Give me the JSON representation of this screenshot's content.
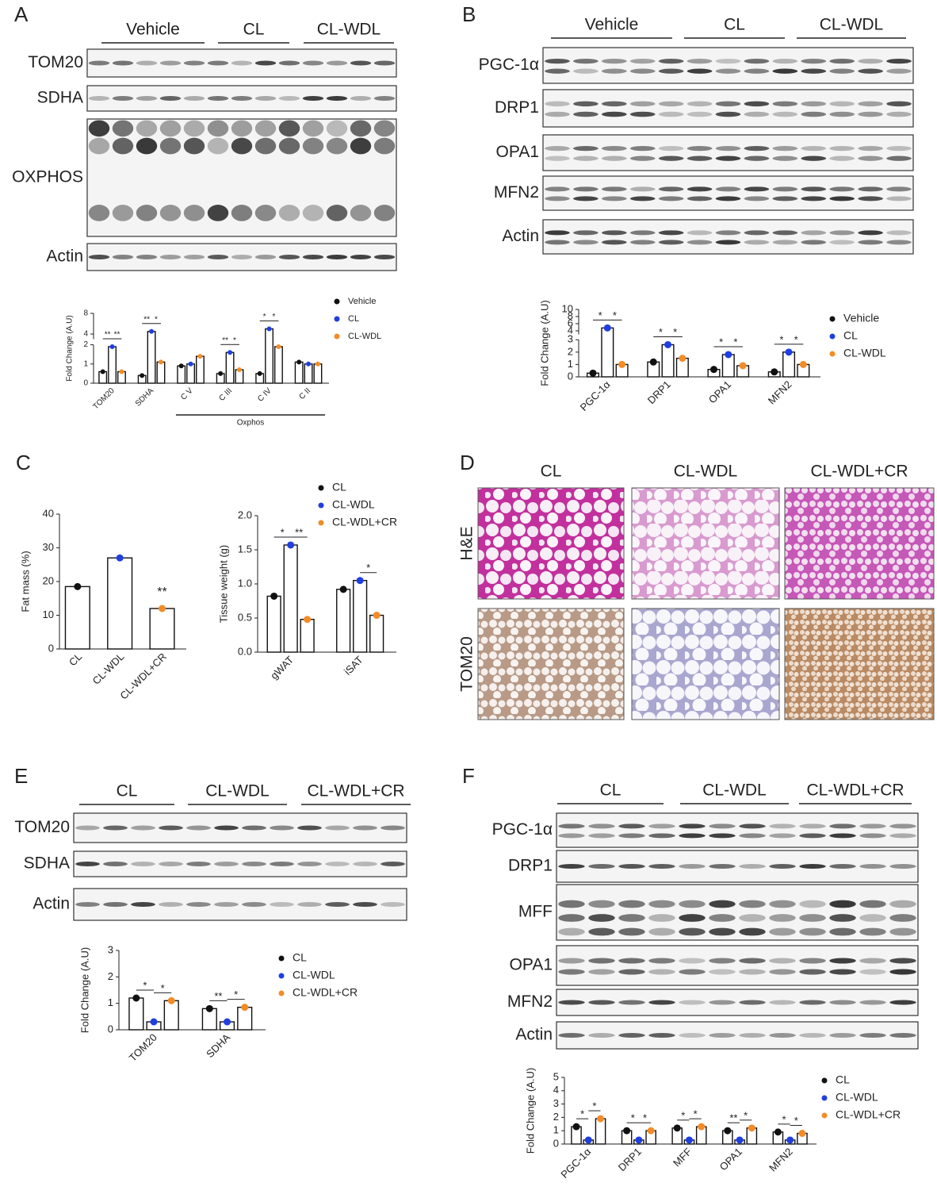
{
  "panels": [
    {
      "label": "A",
      "groups": [
        "Vehicle",
        "CL",
        "CL-WDL"
      ],
      "rows": [
        "TOM20",
        "SDHA",
        "OXPHOS",
        "Actin"
      ]
    },
    {
      "label": "B",
      "groups": [
        "Vehicle",
        "CL",
        "CL-WDL"
      ],
      "rows": [
        "PGC-1α",
        "DRP1",
        "OPA1",
        "MFN2",
        "Actin"
      ]
    },
    {
      "label": "C"
    },
    {
      "label": "D",
      "columns": [
        "CL",
        "CL-WDL",
        "CL-WDL+CR"
      ],
      "rows": [
        "H&E",
        "TOM20"
      ]
    },
    {
      "label": "E",
      "groups": [
        "CL",
        "CL-WDL",
        "CL-WDL+CR"
      ],
      "rows": [
        "TOM20",
        "SDHA",
        "Actin"
      ]
    },
    {
      "label": "F",
      "groups": [
        "CL",
        "CL-WDL",
        "CL-WDL+CR"
      ],
      "rows": [
        "PGC-1α",
        "DRP1",
        "MFF",
        "OPA1",
        "MFN2",
        "Actin"
      ]
    }
  ],
  "chart_data": [
    {
      "type": "bar",
      "y_label": "Fold Change (A.U)",
      "categories": [
        "TOM20",
        "SDHA",
        "C V",
        "C III",
        "C IV",
        "C II"
      ],
      "series": [
        {
          "name": "Vehicle",
          "color": "#111111",
          "values": [
            0.6,
            0.4,
            0.9,
            0.5,
            0.5,
            1.1
          ]
        },
        {
          "name": "CL",
          "color": "#1f3fe0",
          "values": [
            1.9,
            4.5,
            1.0,
            1.6,
            5,
            1.0
          ]
        },
        {
          "name": "CL-WDL",
          "color": "#f28c28",
          "values": [
            0.6,
            1.1,
            1.4,
            0.7,
            1.9,
            1.0
          ]
        }
      ],
      "ylim": [
        0,
        8
      ],
      "axis_break": [
        2,
        3
      ],
      "yticks": [
        0,
        1,
        2,
        4,
        8
      ],
      "significance": [
        {
          "category": 0,
          "from": 0,
          "to": 1,
          "label": "**"
        },
        {
          "category": 0,
          "from": 1,
          "to": 2,
          "label": "**"
        },
        {
          "category": 1,
          "from": 0,
          "to": 1,
          "label": "**"
        },
        {
          "category": 1,
          "from": 1,
          "to": 2,
          "label": "*"
        },
        {
          "category": 3,
          "from": 0,
          "to": 1,
          "label": "**"
        },
        {
          "category": 3,
          "from": 1,
          "to": 2,
          "label": "*"
        },
        {
          "category": 4,
          "from": 0,
          "to": 1,
          "label": "*"
        },
        {
          "category": 4,
          "from": 1,
          "to": 2,
          "label": "*"
        }
      ],
      "bracket": {
        "label": "Oxphos",
        "from": 2,
        "to": 5
      }
    },
    {
      "type": "bar",
      "y_label": "Fold Change (A.U)",
      "categories": [
        "PGC-1α",
        "DRP1",
        "OPA1",
        "MFN2"
      ],
      "series": [
        {
          "name": "Vehicle",
          "color": "#111111",
          "values": [
            0.3,
            1.2,
            0.6,
            0.4
          ]
        },
        {
          "name": "CL",
          "color": "#1f3fe0",
          "values": [
            4.8,
            2.6,
            1.8,
            2.0
          ]
        },
        {
          "name": "CL-WDL",
          "color": "#f28c28",
          "values": [
            1.0,
            1.5,
            0.9,
            1.0
          ]
        }
      ],
      "ylim": [
        0,
        10
      ],
      "axis_break": [
        3,
        3
      ],
      "yticks": [
        0,
        1,
        2,
        3,
        4,
        6,
        8,
        10
      ],
      "significance": [
        {
          "category": 0,
          "from": 0,
          "to": 1,
          "label": "*"
        },
        {
          "category": 0,
          "from": 1,
          "to": 2,
          "label": "*"
        },
        {
          "category": 1,
          "from": 0,
          "to": 1,
          "label": "*"
        },
        {
          "category": 1,
          "from": 1,
          "to": 2,
          "label": "*"
        },
        {
          "category": 2,
          "from": 0,
          "to": 1,
          "label": "*"
        },
        {
          "category": 2,
          "from": 1,
          "to": 2,
          "label": "*"
        },
        {
          "category": 3,
          "from": 0,
          "to": 1,
          "label": "*"
        },
        {
          "category": 3,
          "from": 1,
          "to": 2,
          "label": "*"
        }
      ]
    },
    {
      "type": "bar",
      "y_label": "Fat mass (%)",
      "categories": [
        "CL",
        "CL-WDL",
        "CL-WDL+CR"
      ],
      "values": [
        18.5,
        27,
        12
      ],
      "colors": [
        "#111111",
        "#1f3fe0",
        "#f28c28"
      ],
      "ylim": [
        0,
        40
      ],
      "yticks": [
        0,
        10,
        20,
        30,
        40
      ],
      "significance": [
        {
          "category": 2,
          "label": "**"
        }
      ]
    },
    {
      "type": "bar",
      "y_label": "Tissue weight (g)",
      "categories": [
        "gWAT",
        "iSAT"
      ],
      "series": [
        {
          "name": "CL",
          "color": "#111111",
          "values": [
            0.82,
            0.92
          ]
        },
        {
          "name": "CL-WDL",
          "color": "#1f3fe0",
          "values": [
            1.57,
            1.05
          ]
        },
        {
          "name": "CL-WDL+CR",
          "color": "#f28c28",
          "values": [
            0.48,
            0.54
          ]
        }
      ],
      "ylim": [
        0,
        2
      ],
      "yticks": [
        {
          "value": 0,
          "label": "0.0"
        },
        0.5,
        {
          "value": 1,
          "label": "1.0"
        },
        1.5,
        {
          "value": 2,
          "label": "2.0"
        }
      ],
      "significance": [
        {
          "category": 0,
          "from": 0,
          "to": 1,
          "label": "*"
        },
        {
          "category": 0,
          "from": 1,
          "to": 2,
          "label": "**"
        },
        {
          "category": 1,
          "from": 1,
          "to": 2,
          "label": "*"
        }
      ]
    },
    {
      "type": "bar",
      "y_label": "Fold Change (A.U)",
      "categories": [
        "TOM20",
        "SDHA"
      ],
      "series": [
        {
          "name": "CL",
          "color": "#111111",
          "values": [
            1.2,
            0.8
          ]
        },
        {
          "name": "CL-WDL",
          "color": "#1f3fe0",
          "values": [
            0.3,
            0.3
          ]
        },
        {
          "name": "CL-WDL+CR",
          "color": "#f28c28",
          "values": [
            1.1,
            0.85
          ]
        }
      ],
      "ylim": [
        0,
        3
      ],
      "yticks": [
        0,
        1,
        2,
        3
      ],
      "significance": [
        {
          "category": 0,
          "from": 0,
          "to": 1,
          "label": "*"
        },
        {
          "category": 0,
          "from": 1,
          "to": 2,
          "label": "*"
        },
        {
          "category": 1,
          "from": 0,
          "to": 1,
          "label": "**"
        },
        {
          "category": 1,
          "from": 1,
          "to": 2,
          "label": "*"
        }
      ]
    },
    {
      "type": "bar",
      "y_label": "Fold Change (A.U)",
      "categories": [
        "PGC-1α",
        "DRP1",
        "MFF",
        "OPA1",
        "MFN2"
      ],
      "series": [
        {
          "name": "CL",
          "color": "#111111",
          "values": [
            1.3,
            1.0,
            1.2,
            1.0,
            0.9
          ]
        },
        {
          "name": "CL-WDL",
          "color": "#1f3fe0",
          "values": [
            0.3,
            0.3,
            0.3,
            0.3,
            0.3
          ]
        },
        {
          "name": "CL-WDL+CR",
          "color": "#f28c28",
          "values": [
            1.9,
            1.0,
            1.3,
            1.2,
            0.8
          ]
        }
      ],
      "ylim": [
        0,
        5
      ],
      "yticks": [
        0,
        1,
        2,
        3,
        4,
        5
      ],
      "significance": [
        {
          "category": 0,
          "from": 0,
          "to": 1,
          "label": "*"
        },
        {
          "category": 0,
          "from": 1,
          "to": 2,
          "label": "*"
        },
        {
          "category": 1,
          "from": 0,
          "to": 1,
          "label": "*"
        },
        {
          "category": 1,
          "from": 1,
          "to": 2,
          "label": "*"
        },
        {
          "category": 2,
          "from": 0,
          "to": 1,
          "label": "*"
        },
        {
          "category": 2,
          "from": 1,
          "to": 2,
          "label": "*"
        },
        {
          "category": 3,
          "from": 0,
          "to": 1,
          "label": "**"
        },
        {
          "category": 3,
          "from": 1,
          "to": 2,
          "label": "*"
        },
        {
          "category": 4,
          "from": 0,
          "to": 1,
          "label": "*"
        },
        {
          "category": 4,
          "from": 1,
          "to": 2,
          "label": "*"
        }
      ]
    }
  ]
}
